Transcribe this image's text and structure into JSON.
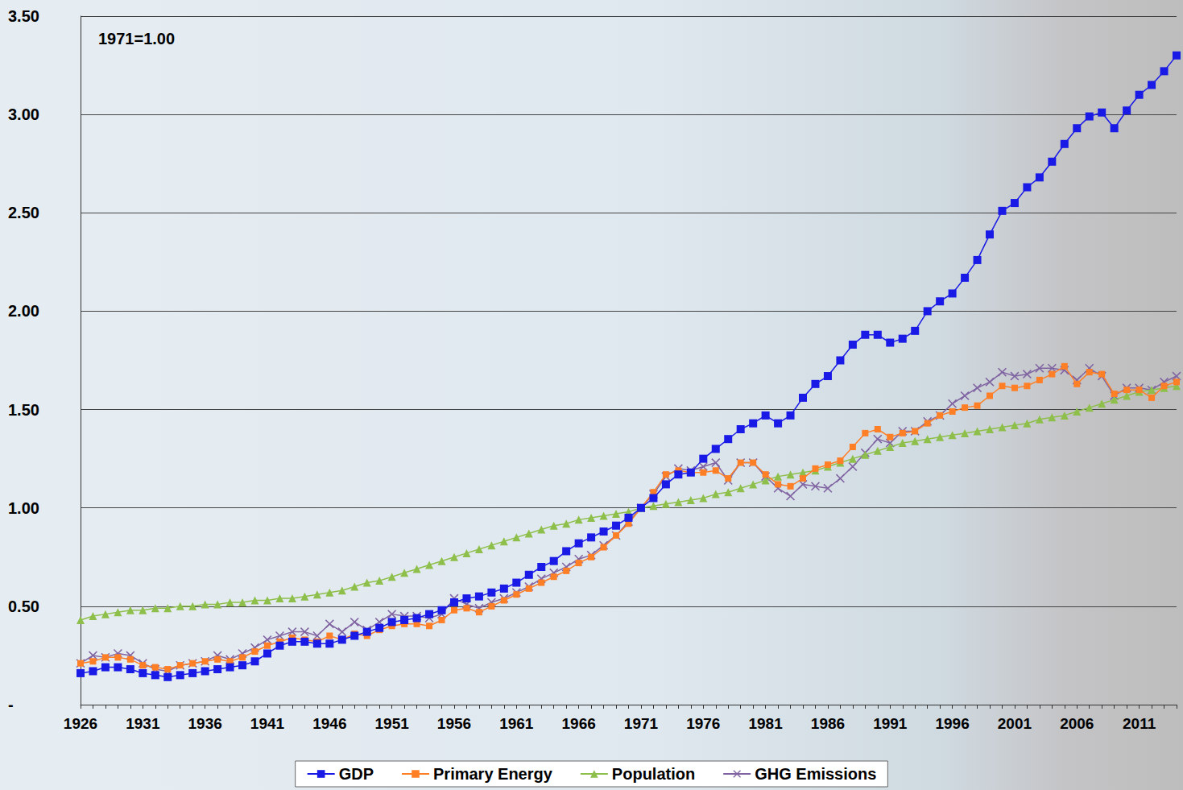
{
  "chart_data": {
    "type": "line",
    "annotation": "1971=1.00",
    "categories": [
      "1926",
      null,
      null,
      null,
      null,
      "1931",
      null,
      null,
      null,
      null,
      "1936",
      null,
      null,
      null,
      null,
      "1941",
      null,
      null,
      null,
      null,
      "1946",
      null,
      null,
      null,
      null,
      "1951",
      null,
      null,
      null,
      null,
      "1956",
      null,
      null,
      null,
      null,
      "1961",
      null,
      null,
      null,
      null,
      "1966",
      null,
      null,
      null,
      null,
      "1971",
      null,
      null,
      null,
      null,
      "1976",
      null,
      null,
      null,
      null,
      "1981",
      null,
      null,
      null,
      null,
      "1986",
      null,
      null,
      null,
      null,
      "1991",
      null,
      null,
      null,
      null,
      "1996",
      null,
      null,
      null,
      null,
      "2001",
      null,
      null,
      null,
      null,
      "2006",
      null,
      null,
      null,
      null,
      "2011",
      null,
      null,
      null
    ],
    "series": [
      {
        "name": "GDP",
        "color": "#1a1ae6",
        "marker": "square",
        "values": [
          0.16,
          0.17,
          0.19,
          0.19,
          0.18,
          0.16,
          0.15,
          0.14,
          0.15,
          0.16,
          0.17,
          0.18,
          0.19,
          0.2,
          0.22,
          0.26,
          0.3,
          0.32,
          0.32,
          0.31,
          0.31,
          0.33,
          0.35,
          0.37,
          0.39,
          0.42,
          0.43,
          0.44,
          0.46,
          0.48,
          0.52,
          0.54,
          0.55,
          0.57,
          0.59,
          0.62,
          0.66,
          0.7,
          0.73,
          0.78,
          0.82,
          0.85,
          0.88,
          0.91,
          0.95,
          1.0,
          1.05,
          1.12,
          1.17,
          1.18,
          1.25,
          1.3,
          1.35,
          1.4,
          1.43,
          1.47,
          1.43,
          1.47,
          1.56,
          1.63,
          1.67,
          1.75,
          1.83,
          1.88,
          1.88,
          1.84,
          1.86,
          1.9,
          2.0,
          2.05,
          2.09,
          2.17,
          2.26,
          2.39,
          2.51,
          2.55,
          2.63,
          2.68,
          2.76,
          2.85,
          2.93,
          2.99,
          3.01,
          2.93,
          3.02,
          3.1,
          3.15,
          3.22,
          3.3
        ]
      },
      {
        "name": "Primary Energy",
        "color": "#ff7f27",
        "marker": "square",
        "values": [
          0.21,
          0.22,
          0.24,
          0.24,
          0.23,
          0.2,
          0.19,
          0.18,
          0.2,
          0.21,
          0.22,
          0.23,
          0.22,
          0.24,
          0.27,
          0.3,
          0.32,
          0.34,
          0.33,
          0.32,
          0.35,
          0.33,
          0.36,
          0.35,
          0.38,
          0.4,
          0.41,
          0.41,
          0.4,
          0.43,
          0.48,
          0.49,
          0.47,
          0.5,
          0.53,
          0.56,
          0.59,
          0.62,
          0.65,
          0.68,
          0.72,
          0.75,
          0.8,
          0.86,
          0.92,
          1.0,
          1.08,
          1.17,
          1.19,
          1.18,
          1.18,
          1.19,
          1.15,
          1.23,
          1.23,
          1.17,
          1.12,
          1.11,
          1.15,
          1.2,
          1.22,
          1.24,
          1.31,
          1.38,
          1.4,
          1.36,
          1.38,
          1.39,
          1.43,
          1.47,
          1.49,
          1.51,
          1.52,
          1.57,
          1.62,
          1.61,
          1.62,
          1.65,
          1.68,
          1.72,
          1.63,
          1.69,
          1.68,
          1.58,
          1.6,
          1.6,
          1.56,
          1.62,
          1.64
        ]
      },
      {
        "name": "Population",
        "color": "#8dbf4a",
        "marker": "triangle",
        "values": [
          0.43,
          0.45,
          0.46,
          0.47,
          0.48,
          0.48,
          0.49,
          0.49,
          0.5,
          0.5,
          0.51,
          0.51,
          0.52,
          0.52,
          0.53,
          0.53,
          0.54,
          0.54,
          0.55,
          0.56,
          0.57,
          0.58,
          0.6,
          0.62,
          0.63,
          0.65,
          0.67,
          0.69,
          0.71,
          0.73,
          0.75,
          0.77,
          0.79,
          0.81,
          0.83,
          0.85,
          0.87,
          0.89,
          0.91,
          0.92,
          0.94,
          0.95,
          0.96,
          0.97,
          0.98,
          1.0,
          1.01,
          1.02,
          1.03,
          1.04,
          1.05,
          1.07,
          1.08,
          1.1,
          1.12,
          1.14,
          1.16,
          1.17,
          1.18,
          1.19,
          1.21,
          1.23,
          1.25,
          1.27,
          1.29,
          1.31,
          1.33,
          1.34,
          1.35,
          1.36,
          1.37,
          1.38,
          1.39,
          1.4,
          1.41,
          1.42,
          1.43,
          1.45,
          1.46,
          1.47,
          1.49,
          1.51,
          1.53,
          1.55,
          1.57,
          1.59,
          1.6,
          1.61,
          1.62
        ]
      },
      {
        "name": "GHG Emissions",
        "color": "#8064a2",
        "marker": "x",
        "values": [
          0.21,
          0.25,
          0.24,
          0.26,
          0.25,
          0.21,
          0.18,
          0.17,
          0.2,
          0.21,
          0.22,
          0.25,
          0.23,
          0.26,
          0.29,
          0.33,
          0.35,
          0.37,
          0.37,
          0.35,
          0.41,
          0.37,
          0.42,
          0.38,
          0.42,
          0.46,
          0.45,
          0.45,
          0.44,
          0.46,
          0.54,
          0.51,
          0.49,
          0.52,
          0.54,
          0.57,
          0.6,
          0.64,
          0.67,
          0.7,
          0.74,
          0.76,
          0.81,
          0.86,
          0.93,
          1.0,
          1.07,
          1.16,
          1.2,
          1.19,
          1.21,
          1.23,
          1.14,
          1.23,
          1.23,
          1.16,
          1.1,
          1.06,
          1.12,
          1.11,
          1.1,
          1.15,
          1.21,
          1.28,
          1.35,
          1.33,
          1.39,
          1.39,
          1.44,
          1.47,
          1.53,
          1.57,
          1.61,
          1.64,
          1.69,
          1.67,
          1.68,
          1.71,
          1.71,
          1.7,
          1.65,
          1.71,
          1.67,
          1.57,
          1.61,
          1.61,
          1.6,
          1.64,
          1.67
        ]
      }
    ],
    "ylim": [
      0,
      3.5
    ],
    "yticks": [
      {
        "value": 0,
        "label": "-"
      },
      {
        "value": 0.5,
        "label": "0.50"
      },
      {
        "value": 1,
        "label": "1.00"
      },
      {
        "value": 1.5,
        "label": "1.50"
      },
      {
        "value": 2,
        "label": "2.00"
      },
      {
        "value": 2.5,
        "label": "2.50"
      },
      {
        "value": 3,
        "label": "3.00"
      },
      {
        "value": 3.5,
        "label": "3.50"
      }
    ],
    "grid": true,
    "legend": "bottom"
  }
}
